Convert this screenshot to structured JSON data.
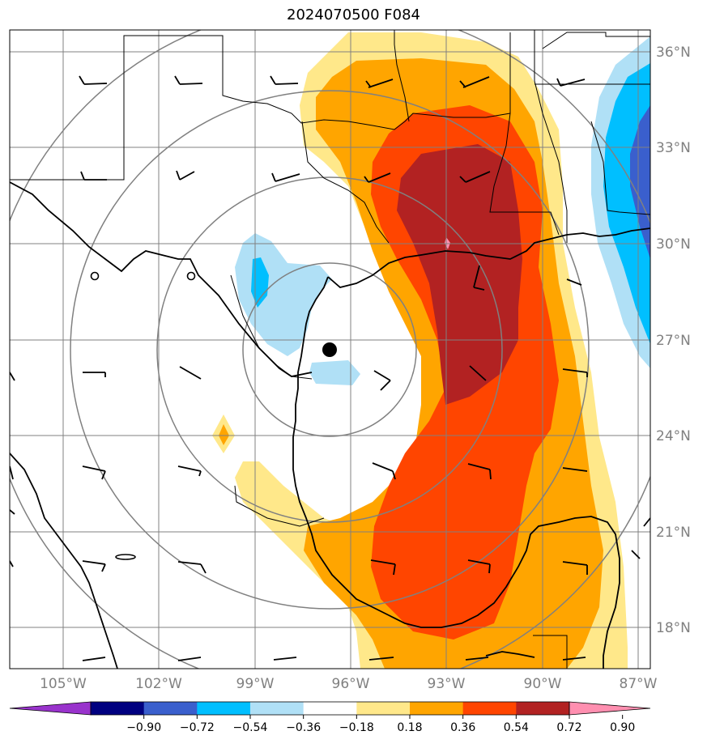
{
  "title": "2024070500 F084",
  "map": {
    "lat_labels": [
      "36°N",
      "33°N",
      "30°N",
      "27°N",
      "24°N",
      "21°N",
      "18°N"
    ],
    "lon_labels": [
      "105°W",
      "102°W",
      "99°W",
      "96°W",
      "93°W",
      "90°W",
      "87°W"
    ],
    "center_marker": "storm-center",
    "range_rings": 4
  },
  "colorbar": {
    "ticks": [
      "−0.90",
      "−0.72",
      "−0.54",
      "−0.36",
      "−0.18",
      "0.18",
      "0.36",
      "0.54",
      "0.72",
      "0.90"
    ],
    "colors": [
      "#9933cc",
      "#000080",
      "#3a5fcd",
      "#00bfff",
      "#b0e0f6",
      "#ffffff",
      "#ffe88a",
      "#ffa500",
      "#ff4500",
      "#b22222",
      "#ff8fb0"
    ]
  },
  "palette": {
    "field_colors": {
      "light_yellow": "#ffe88a",
      "orange": "#ffa500",
      "red_orange": "#ff4500",
      "dark_red": "#b22222",
      "light_blue": "#b0e0f6",
      "deep_sky_blue": "#00bfff",
      "royal_blue": "#3a5fcd",
      "pink": "#ff8fb0"
    },
    "grid": "#808080",
    "coast": "#000000"
  }
}
